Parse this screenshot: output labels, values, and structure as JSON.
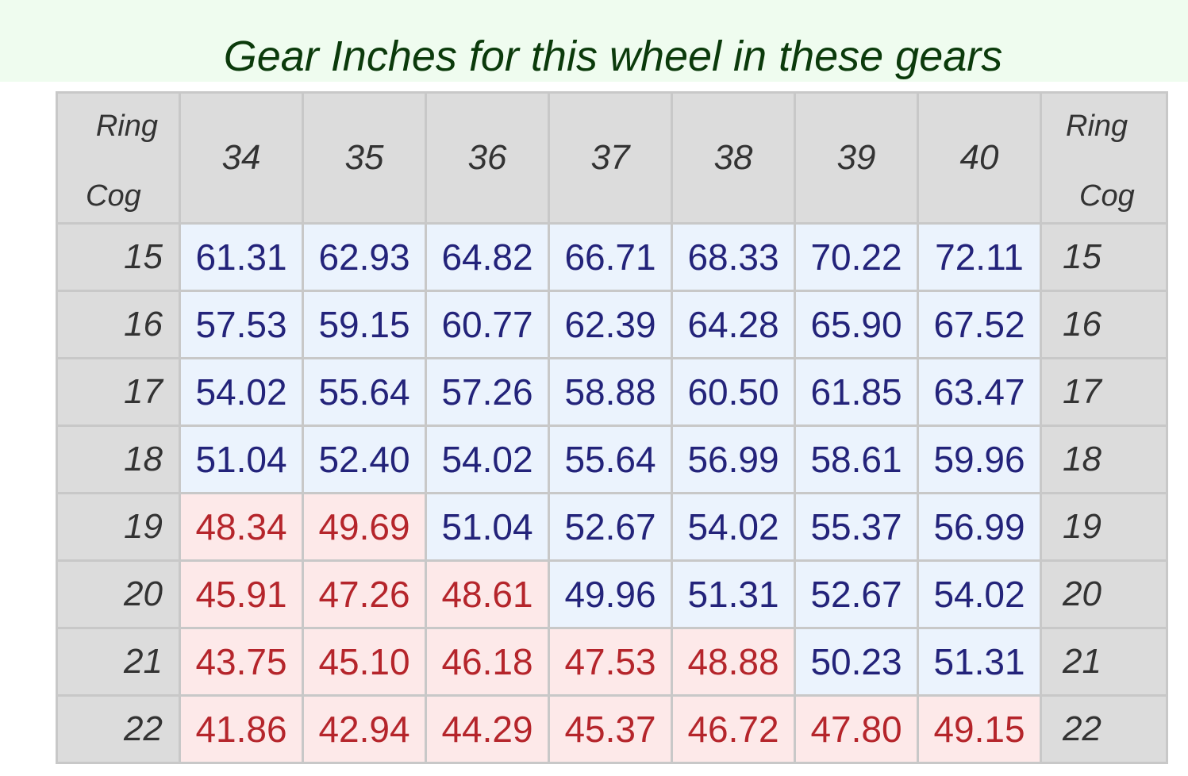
{
  "title": "Gear Inches for this wheel in these gears",
  "table": {
    "corner_top": "Ring",
    "corner_bottom": "Cog",
    "columns": [
      "34",
      "35",
      "36",
      "37",
      "38",
      "39",
      "40"
    ],
    "palette": {
      "warm": {
        "text": "#b5252b",
        "background": "#fde9e9"
      },
      "cool": {
        "text": "#23237a",
        "background": "#ebf3fd"
      }
    },
    "rows": [
      {
        "cog": "15",
        "values": [
          "61.31",
          "62.93",
          "64.82",
          "66.71",
          "68.33",
          "70.22",
          "72.11"
        ],
        "tones": [
          "cool",
          "cool",
          "cool",
          "cool",
          "cool",
          "cool",
          "cool"
        ]
      },
      {
        "cog": "16",
        "values": [
          "57.53",
          "59.15",
          "60.77",
          "62.39",
          "64.28",
          "65.90",
          "67.52"
        ],
        "tones": [
          "cool",
          "cool",
          "cool",
          "cool",
          "cool",
          "cool",
          "cool"
        ]
      },
      {
        "cog": "17",
        "values": [
          "54.02",
          "55.64",
          "57.26",
          "58.88",
          "60.50",
          "61.85",
          "63.47"
        ],
        "tones": [
          "cool",
          "cool",
          "cool",
          "cool",
          "cool",
          "cool",
          "cool"
        ]
      },
      {
        "cog": "18",
        "values": [
          "51.04",
          "52.40",
          "54.02",
          "55.64",
          "56.99",
          "58.61",
          "59.96"
        ],
        "tones": [
          "cool",
          "cool",
          "cool",
          "cool",
          "cool",
          "cool",
          "cool"
        ]
      },
      {
        "cog": "19",
        "values": [
          "48.34",
          "49.69",
          "51.04",
          "52.67",
          "54.02",
          "55.37",
          "56.99"
        ],
        "tones": [
          "warm",
          "warm",
          "cool",
          "cool",
          "cool",
          "cool",
          "cool"
        ]
      },
      {
        "cog": "20",
        "values": [
          "45.91",
          "47.26",
          "48.61",
          "49.96",
          "51.31",
          "52.67",
          "54.02"
        ],
        "tones": [
          "warm",
          "warm",
          "warm",
          "cool",
          "cool",
          "cool",
          "cool"
        ]
      },
      {
        "cog": "21",
        "values": [
          "43.75",
          "45.10",
          "46.18",
          "47.53",
          "48.88",
          "50.23",
          "51.31"
        ],
        "tones": [
          "warm",
          "warm",
          "warm",
          "warm",
          "warm",
          "cool",
          "cool"
        ]
      },
      {
        "cog": "22",
        "values": [
          "41.86",
          "42.94",
          "44.29",
          "45.37",
          "46.72",
          "47.80",
          "49.15"
        ],
        "tones": [
          "warm",
          "warm",
          "warm",
          "warm",
          "warm",
          "warm",
          "warm"
        ]
      }
    ]
  }
}
